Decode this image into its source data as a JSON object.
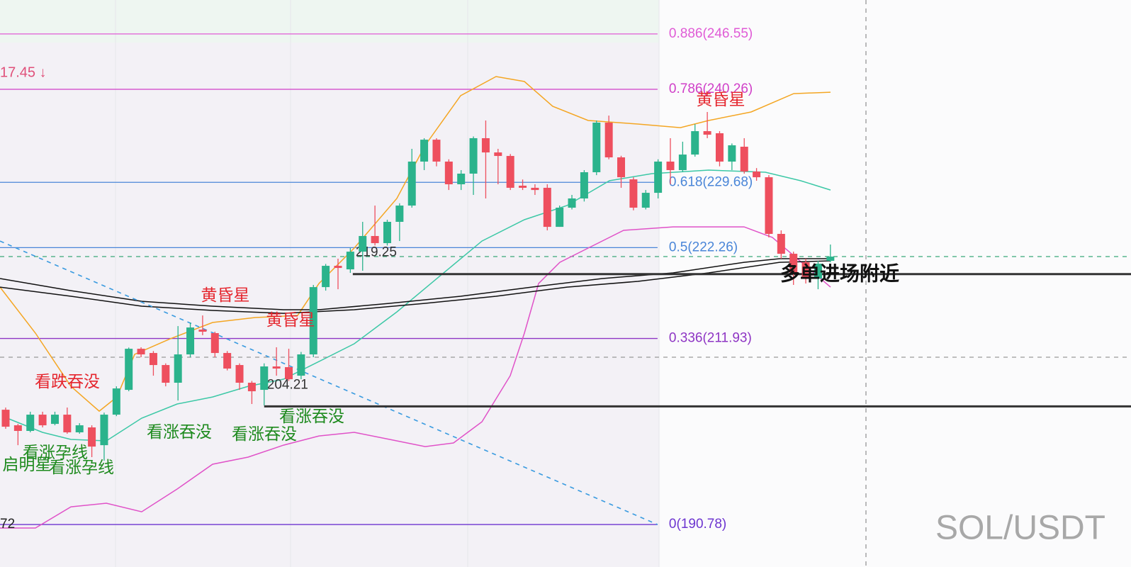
{
  "chart_data": {
    "type": "candlestick",
    "up_color": "#2bb38c",
    "down_color": "#ee4f5e",
    "xlim": [
      -0.46,
      91.42
    ],
    "ylim": [
      185.95,
      250.41
    ],
    "open": [
      203.83,
      202.06,
      201.42,
      203.27,
      202.22,
      203.27,
      201.26,
      201.82,
      199.8,
      203.27,
      206.09,
      210.76,
      210.28,
      208.91,
      206.9,
      210.12,
      212.94,
      212.54,
      210.28,
      208.91,
      206.9,
      206.09,
      208.75,
      208.67,
      207.7,
      210.12,
      217.77,
      220.19,
      219.79,
      221.8,
      223.58,
      222.77,
      225.19,
      227.04,
      232.04,
      234.53,
      232.04,
      229.46,
      230.67,
      234.7,
      233.08,
      232.68,
      229.3,
      229.06,
      229.06,
      224.62,
      226.8,
      227.85,
      230.83,
      236.47,
      232.52,
      230.02,
      226.8,
      228.49,
      232.04,
      231.07,
      232.84,
      235.5,
      235.26,
      232.04,
      233.73,
      230.91,
      230.26,
      223.82,
      221.56,
      220.59,
      218.74,
      220.76
    ],
    "high": [
      204.08,
      202.22,
      203.6,
      203.6,
      203.6,
      204.08,
      202.3,
      202.06,
      203.5,
      206.49,
      210.9,
      210.93,
      210.5,
      209.1,
      213.34,
      213.75,
      214.55,
      212.7,
      210.5,
      209.1,
      207.1,
      209.1,
      210.93,
      210.76,
      210.4,
      218.02,
      220.4,
      221.0,
      222.21,
      225.19,
      227.04,
      225.43,
      227.3,
      233.49,
      234.7,
      234.7,
      232.3,
      231.07,
      234.9,
      236.71,
      233.49,
      232.9,
      230.0,
      229.46,
      229.46,
      227.04,
      228.25,
      231.07,
      236.71,
      237.27,
      232.7,
      230.26,
      228.81,
      232.3,
      234.7,
      234.3,
      236.3,
      237.68,
      235.5,
      234.1,
      234.7,
      231.3,
      230.5,
      224.22,
      221.8,
      221.0,
      220.76,
      222.61
    ],
    "low": [
      201.66,
      199.8,
      201.26,
      201.82,
      202.06,
      201.1,
      201.1,
      198.44,
      198.03,
      203.1,
      205.93,
      209.8,
      207.7,
      206.49,
      204.88,
      209.8,
      212.3,
      209.8,
      208.3,
      206.09,
      204.48,
      204.32,
      207.7,
      207.1,
      207.3,
      209.8,
      217.37,
      217.53,
      219.39,
      219.63,
      222.5,
      222.5,
      223.01,
      226.8,
      231.07,
      231.5,
      228.81,
      228.81,
      228.25,
      227.85,
      229.46,
      228.81,
      228.81,
      228.25,
      224.22,
      224.62,
      226.6,
      227.5,
      230.5,
      232.3,
      229.06,
      226.5,
      226.6,
      227.85,
      229.46,
      230.83,
      232.6,
      234.7,
      231.5,
      231.07,
      230.67,
      229.86,
      223.42,
      221.0,
      218.02,
      218.18,
      217.53,
      220.59
    ],
    "close": [
      201.9,
      201.42,
      203.27,
      202.06,
      203.27,
      201.26,
      202.06,
      199.64,
      203.27,
      206.25,
      210.76,
      210.12,
      208.91,
      206.9,
      210.12,
      213.18,
      212.7,
      210.28,
      208.51,
      206.9,
      205.93,
      208.75,
      208.51,
      207.3,
      210.12,
      217.77,
      220.19,
      219.95,
      221.8,
      223.58,
      222.77,
      225.19,
      227.04,
      232.04,
      234.53,
      232.04,
      229.46,
      230.67,
      234.7,
      233.08,
      232.68,
      229.06,
      229.06,
      228.81,
      224.62,
      226.8,
      227.85,
      230.83,
      236.47,
      232.52,
      230.26,
      226.8,
      228.49,
      232.04,
      231.07,
      232.84,
      235.5,
      235.1,
      232.04,
      233.89,
      230.91,
      230.26,
      223.82,
      221.56,
      219.39,
      218.74,
      220.43,
      221.24
    ],
    "overlays": [
      {
        "color": "#f4a623",
        "dash": false,
        "x": [
          -0.46,
          2.42,
          5.3,
          7.6,
          9.04,
          10.48,
          13.36,
          16.81,
          20.27,
          23.72,
          25.45,
          28.32,
          31.78,
          34.08,
          36.96,
          39.84,
          42.14,
          44.44,
          47.32,
          51.35,
          54.81,
          57.11,
          60.56,
          64.02,
          67.01
        ],
        "values": [
          217.77,
          212.54,
          206.49,
          203.67,
          205.28,
          210.12,
          211.89,
          213.75,
          214.31,
          214.55,
          218.18,
          222.21,
          227.85,
          233.89,
          239.53,
          241.71,
          241.14,
          238.32,
          236.71,
          236.31,
          235.9,
          236.71,
          237.68,
          239.77,
          239.93
        ]
      },
      {
        "color": "#3cc8a6",
        "dash": false,
        "x": [
          0.12,
          2.99,
          5.3,
          8.18,
          11.05,
          13.93,
          16.81,
          19.69,
          22.57,
          25.45,
          28.32,
          31.78,
          35.23,
          38.69,
          42.14,
          45.6,
          49.05,
          52.5,
          57.11,
          61.72,
          64.59,
          67.01
        ],
        "values": [
          202.87,
          201.26,
          200.45,
          200.29,
          202.87,
          204.48,
          205.28,
          206.49,
          207.3,
          209.31,
          211.33,
          214.95,
          218.98,
          223.01,
          225.43,
          227.04,
          229.86,
          230.67,
          231.07,
          230.83,
          229.86,
          228.81
        ]
      },
      {
        "color": "#e052c8",
        "dash": false,
        "x": [
          -0.46,
          2.42,
          5.3,
          8.18,
          11.05,
          13.93,
          16.81,
          19.69,
          22.57,
          25.45,
          28.32,
          31.2,
          34.08,
          36.38,
          38.69,
          40.99,
          42.14,
          43.29,
          45.02,
          47.32,
          50.2,
          54.23,
          59.99,
          62.29,
          67.01
        ],
        "values": [
          190.38,
          190.38,
          192.79,
          193.2,
          192.23,
          194.81,
          197.63,
          198.44,
          199.8,
          200.85,
          201.26,
          200.45,
          199.64,
          200.05,
          202.46,
          207.7,
          212.54,
          218.18,
          220.59,
          222.21,
          224.22,
          224.62,
          224.62,
          223.42,
          217.77
        ]
      },
      {
        "color": "#111111",
        "dash": false,
        "x": [
          -0.46,
          5.3,
          11.05,
          16.81,
          22.57,
          25.45,
          31.2,
          36.96,
          42.72,
          48.47,
          54.23,
          59.99,
          62.87,
          67.01
        ],
        "values": [
          218.74,
          217.37,
          216.16,
          215.6,
          215.2,
          215.2,
          215.92,
          216.73,
          217.77,
          218.74,
          219.39,
          220.59,
          221.0,
          221.0
        ]
      },
      {
        "color": "#111111",
        "dash": false,
        "x": [
          -0.46,
          5.3,
          11.05,
          16.81,
          22.57,
          28.32,
          34.08,
          39.84,
          45.6,
          51.35,
          57.11,
          62.87,
          67.01
        ],
        "values": [
          217.77,
          216.73,
          215.6,
          215.12,
          214.79,
          215.2,
          215.92,
          216.73,
          217.77,
          218.42,
          219.39,
          220.59,
          220.76
        ]
      },
      {
        "color": "#3a9be0",
        "dash": true,
        "x": [
          -0.46,
          52.96
        ],
        "values": [
          223.01,
          190.78
        ]
      }
    ],
    "levels": [
      {
        "value": 246.55,
        "label": "0.886(246.55)",
        "color": "#e05bd6"
      },
      {
        "value": 240.26,
        "label": "0.786(240.26)",
        "color": "#d03fc8"
      },
      {
        "value": 229.68,
        "label": "0.618(229.68)",
        "color": "#4a86d8"
      },
      {
        "value": 222.26,
        "label": "0.5(222.26)",
        "color": "#4a86d8"
      },
      {
        "value": 211.93,
        "label": "0.336(211.93)",
        "color": "#8e35c4"
      },
      {
        "value": 190.78,
        "label": "0(190.78)",
        "color": "#6d35d0"
      }
    ],
    "supports": [
      {
        "value": 219.25,
        "x": 28.2
      },
      {
        "value": 204.21,
        "x": 21.0
      }
    ],
    "dashed_levels": [
      {
        "value": 221.24,
        "color": "#3aa878"
      },
      {
        "value": 209.8,
        "color": "#999999"
      }
    ],
    "annotations": [
      {
        "text": "17.45 ↓",
        "color": "#e0507a"
      },
      {
        "text": "72",
        "color": "#222222"
      },
      {
        "text": "黄昏星",
        "color": "#e5262e"
      },
      {
        "text": "黄昏星",
        "color": "#e5262e"
      },
      {
        "text": "黄昏星",
        "color": "#e5262e"
      },
      {
        "text": "看跌吞没",
        "color": "#e5262e"
      },
      {
        "text": "看涨吞没",
        "color": "#1e8a1e"
      },
      {
        "text": "看涨吞没",
        "color": "#1e8a1e"
      },
      {
        "text": "看涨吞没",
        "color": "#1e8a1e"
      },
      {
        "text": "看涨孕线",
        "color": "#1e8a1e"
      },
      {
        "text": "启明星",
        "color": "#1e8a1e"
      },
      {
        "text": "看涨孕线",
        "color": "#1e8a1e"
      }
    ],
    "callout": "多单进场附近",
    "watermark": "SOL/USDT"
  }
}
